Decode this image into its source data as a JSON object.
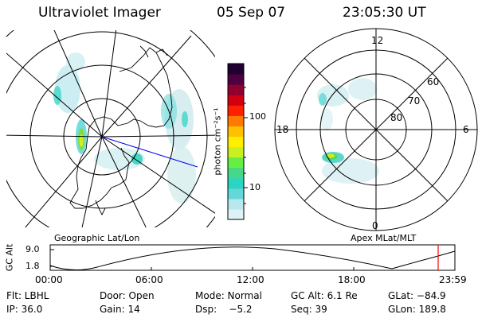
{
  "header": {
    "title": "Ultraviolet Imager",
    "date": "05 Sep 07",
    "time": "23:05:30 UT"
  },
  "geo_map": {
    "label": "Geographic Lat/Lon"
  },
  "apex_map": {
    "label": "Apex MLat/MLT",
    "mlt_labels": {
      "top": "12",
      "left": "18",
      "right": "6",
      "bottom": "0"
    },
    "lat_labels": [
      "60",
      "70",
      "80"
    ]
  },
  "colorbar": {
    "unit": "photon cm⁻²s⁻¹",
    "tick_100": "100",
    "tick_10": "10",
    "colors": [
      "#dff3f6",
      "#b6e8ee",
      "#64d8d8",
      "#2cd4c4",
      "#44d888",
      "#66ee44",
      "#c8f020",
      "#fff000",
      "#ffc000",
      "#ff7a00",
      "#ff2000",
      "#d00010",
      "#900030",
      "#500040",
      "#200030"
    ]
  },
  "altitude_plot": {
    "ylabel": "GC Alt",
    "yticks": [
      "9.0",
      "1.8"
    ],
    "xticks": [
      "00:00",
      "06:00",
      "12:00",
      "18:00",
      "23:59"
    ],
    "marker_color": "#ff0000"
  },
  "info": {
    "row1": {
      "flt": "Flt: LBHL",
      "door": "Door: Open",
      "mode": "Mode: Normal",
      "gcalt": "GC Alt: 6.1 Re",
      "glat": "GLat: −84.9"
    },
    "row2": {
      "ip": "IP: 36.0",
      "gain": "Gain: 14",
      "dsp": "Dsp:    −5.2",
      "seq": "Seq: 39",
      "glon": "GLon: 189.8"
    }
  }
}
